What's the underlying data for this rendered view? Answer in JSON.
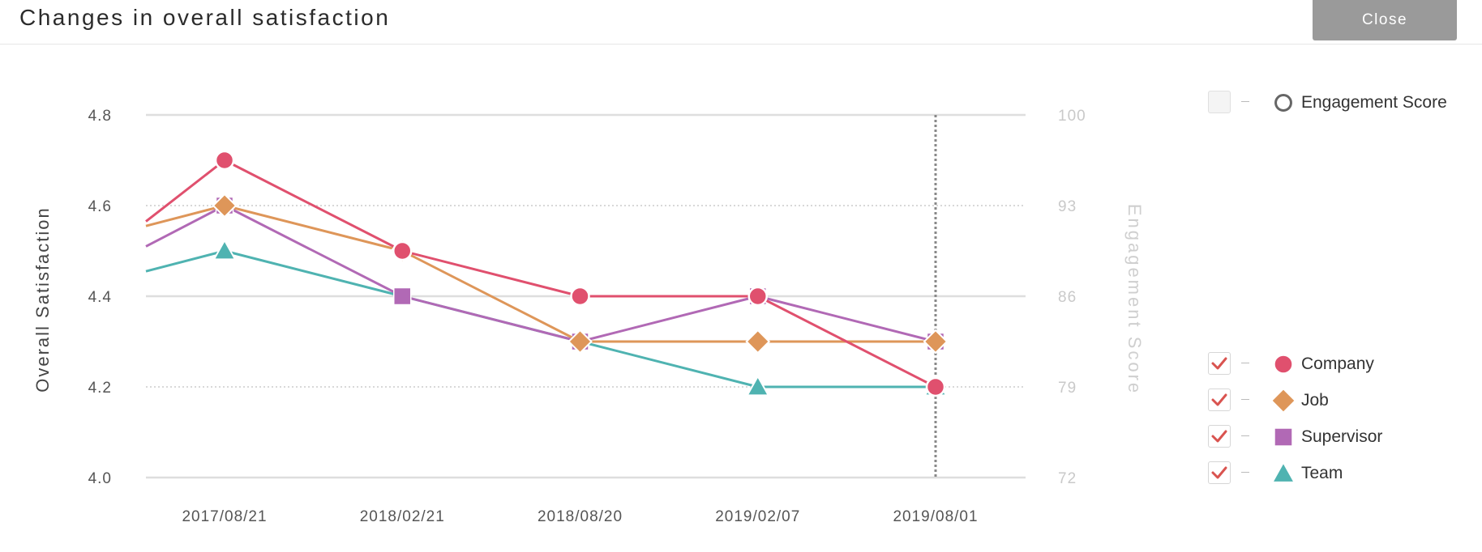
{
  "header": {
    "title": "Changes in overall satisfaction",
    "close_label": "Close"
  },
  "legend": [
    {
      "label": "Engagement Score",
      "shape": "ring",
      "checked": false,
      "color": "#666666"
    },
    {
      "label": "Company",
      "shape": "circle",
      "checked": true,
      "color": "#e0506e"
    },
    {
      "label": "Job",
      "shape": "diamond",
      "checked": true,
      "color": "#de9659"
    },
    {
      "label": "Supervisor",
      "shape": "square",
      "checked": true,
      "color": "#b169b5"
    },
    {
      "label": "Team",
      "shape": "triangle",
      "checked": true,
      "color": "#4fb3b1"
    }
  ],
  "colors": {
    "check": "#d9534f",
    "grid": "#dddddd",
    "cursor_line": "#888888"
  },
  "chart_data": {
    "type": "line",
    "title": "Changes in overall satisfaction",
    "xlabel": "",
    "ylabel": "Overall Satisfaction",
    "y2label": "Engagement Score",
    "categories": [
      "2017/08/21",
      "2018/02/21",
      "2018/08/20",
      "2019/02/07",
      "2019/08/01"
    ],
    "ylim": [
      4.0,
      4.8
    ],
    "yticks": [
      "4.8",
      "4.6",
      "4.4",
      "4.2",
      "4.0"
    ],
    "y2lim": [
      72,
      100
    ],
    "y2ticks": [
      "100",
      "93",
      "86",
      "79",
      "72"
    ],
    "highlight_category": "2019/08/01",
    "series": [
      {
        "name": "Team",
        "shape": "triangle",
        "color": "#4fb3b1",
        "values": [
          4.5,
          4.4,
          4.3,
          4.2,
          4.2
        ],
        "lead_in": 4.455
      },
      {
        "name": "Supervisor",
        "shape": "square",
        "color": "#b169b5",
        "values": [
          4.6,
          4.4,
          4.3,
          4.4,
          4.3
        ],
        "lead_in": 4.51
      },
      {
        "name": "Job",
        "shape": "diamond",
        "color": "#de9659",
        "values": [
          4.6,
          4.5,
          4.3,
          4.3,
          4.3
        ],
        "lead_in": 4.555
      },
      {
        "name": "Company",
        "shape": "circle",
        "color": "#e0506e",
        "values": [
          4.7,
          4.5,
          4.4,
          4.4,
          4.2
        ],
        "lead_in": 4.565
      }
    ]
  }
}
